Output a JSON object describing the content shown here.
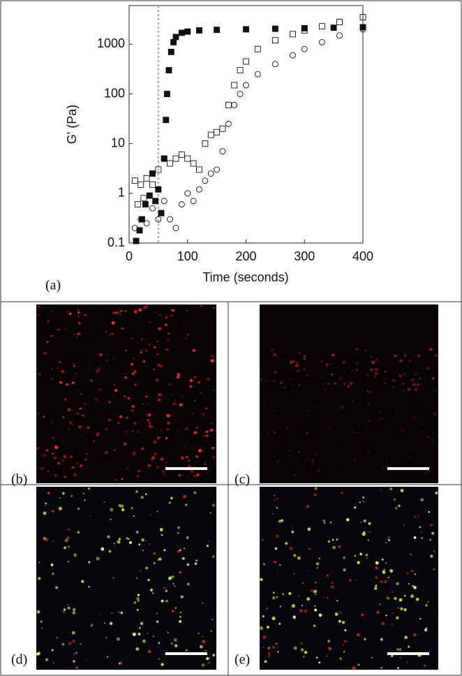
{
  "chart_data": {
    "type": "scatter",
    "xlabel": "Time (seconds)",
    "ylabel": "G' (Pa)",
    "xlim": [
      0,
      400
    ],
    "xticks": [
      0,
      100,
      200,
      300,
      400
    ],
    "ylim": [
      0.1,
      6000
    ],
    "yticks": [
      0.1,
      1,
      10,
      100,
      1000
    ],
    "log_y": true,
    "grid": false,
    "reference_line_x": 50,
    "reference_line_color": "#b0b0b0",
    "series": [
      {
        "marker": "filled-square",
        "color": "#111111",
        "x": [
          12,
          18,
          22,
          28,
          35,
          40,
          45,
          50,
          55,
          60,
          63,
          65,
          68,
          72,
          76,
          80,
          90,
          100,
          120,
          150,
          200,
          250,
          300,
          350,
          400
        ],
        "values": [
          0.11,
          0.18,
          0.3,
          0.6,
          0.9,
          2.5,
          0.7,
          1.2,
          0.4,
          5,
          30,
          100,
          300,
          700,
          1100,
          1400,
          1700,
          1800,
          1900,
          1950,
          2000,
          2050,
          2100,
          2150,
          2200
        ]
      },
      {
        "marker": "open-square",
        "color": "#111111",
        "x": [
          10,
          15,
          20,
          25,
          30,
          40,
          50,
          60,
          70,
          80,
          90,
          100,
          110,
          120,
          130,
          140,
          150,
          160,
          170,
          180,
          190,
          200,
          220,
          250,
          280,
          300,
          330,
          360,
          400
        ],
        "values": [
          1.8,
          0.6,
          1.5,
          0.8,
          2,
          1.5,
          3,
          5,
          4,
          5,
          6,
          5,
          4,
          3,
          10,
          15,
          17,
          20,
          60,
          150,
          300,
          450,
          800,
          1200,
          1600,
          1900,
          2300,
          2800,
          3500
        ]
      },
      {
        "marker": "open-circle",
        "color": "#111111",
        "x": [
          10,
          20,
          30,
          40,
          50,
          60,
          70,
          80,
          90,
          100,
          110,
          120,
          130,
          140,
          150,
          160,
          170,
          180,
          190,
          200,
          220,
          250,
          280,
          300,
          330,
          360,
          400
        ],
        "values": [
          0.2,
          0.3,
          0.25,
          0.5,
          0.3,
          0.7,
          0.3,
          0.2,
          0.6,
          1.0,
          0.7,
          1.2,
          1.8,
          2.5,
          3,
          7,
          25,
          60,
          100,
          150,
          250,
          400,
          600,
          800,
          1100,
          1500,
          2000
        ]
      }
    ]
  },
  "panels": [
    "(a)",
    "(b)",
    "(c)",
    "(d)",
    "(e)"
  ]
}
